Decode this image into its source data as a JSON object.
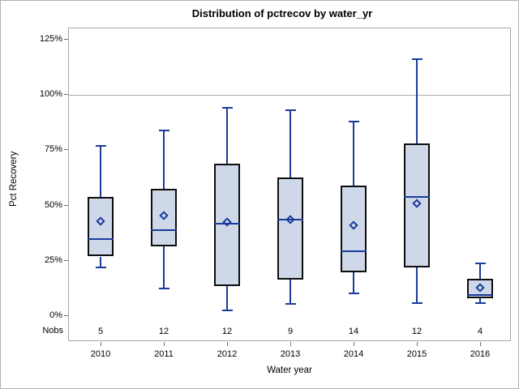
{
  "title": "Distribution of pctrecov by water_yr",
  "y_axis": {
    "label": "Pct Recovery",
    "tick_labels": [
      "0%",
      "25%",
      "50%",
      "75%",
      "100%",
      "125%"
    ],
    "tick_values": [
      0,
      25,
      50,
      75,
      100,
      125
    ]
  },
  "x_axis": {
    "label": "Water year"
  },
  "nobs_label": "Nobs",
  "reference_line_value": 100,
  "colors": {
    "box_fill": "#ced8e8",
    "box_border": "#0d0d0d",
    "line": "#1a3a9c",
    "frame": "#a6a6a6",
    "background": "#ffffff"
  },
  "chart_data": {
    "type": "boxplot",
    "title": "Distribution of pctrecov by water_yr",
    "xlabel": "Water year",
    "ylabel": "Pct Recovery",
    "ylim": [
      -12,
      130
    ],
    "grid": false,
    "reference_line": 100,
    "categories": [
      "2010",
      "2011",
      "2012",
      "2013",
      "2014",
      "2015",
      "2016"
    ],
    "series": [
      {
        "category": "2010",
        "nobs": 5,
        "min": 22,
        "q1": 27,
        "median": 35,
        "mean": 43,
        "q3": 54,
        "max": 77
      },
      {
        "category": "2011",
        "nobs": 12,
        "min": 12.5,
        "q1": 31.5,
        "median": 39,
        "mean": 45.5,
        "q3": 57.5,
        "max": 84
      },
      {
        "category": "2012",
        "nobs": 12,
        "min": 2.5,
        "q1": 13.5,
        "median": 42,
        "mean": 42.5,
        "q3": 69,
        "max": 94
      },
      {
        "category": "2013",
        "nobs": 9,
        "min": 5.5,
        "q1": 16.5,
        "median": 43.5,
        "mean": 43.5,
        "q3": 62.5,
        "max": 93
      },
      {
        "category": "2014",
        "nobs": 14,
        "min": 10.5,
        "q1": 20,
        "median": 29.5,
        "mean": 41,
        "q3": 59,
        "max": 88
      },
      {
        "category": "2015",
        "nobs": 12,
        "min": 6,
        "q1": 22,
        "median": 54,
        "mean": 51,
        "q3": 78,
        "max": 116
      },
      {
        "category": "2016",
        "nobs": 4,
        "min": 6,
        "q1": 8,
        "median": 9.5,
        "mean": 13,
        "q3": 17,
        "max": 24
      }
    ]
  }
}
